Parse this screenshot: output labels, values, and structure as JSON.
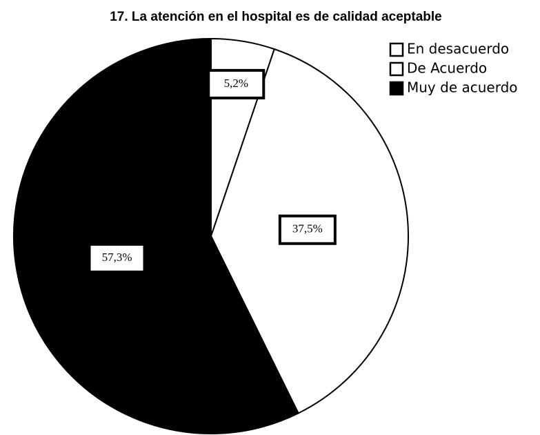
{
  "chart_data": {
    "type": "pie",
    "title": "17. La atención en el hospital es de calidad aceptable",
    "categories": [
      "En desacuerdo",
      "De Acuerdo",
      "Muy de acuerdo"
    ],
    "values": [
      5.2,
      37.5,
      57.3
    ],
    "value_labels": [
      "5,2%",
      "37,5%",
      "57,3%"
    ],
    "colors": [
      "#ffffff",
      "#ffffff",
      "#000000"
    ],
    "legend": "top-right"
  }
}
